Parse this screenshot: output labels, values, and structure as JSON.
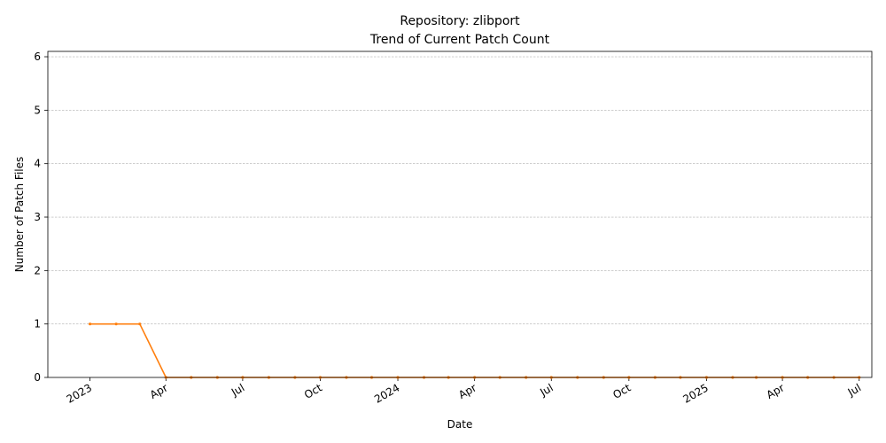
{
  "chart_data": {
    "type": "line",
    "title": "Repository: zlibport",
    "subtitle": "Trend of Current Patch Count",
    "xlabel": "Date",
    "ylabel": "Number of Patch Files",
    "ylim": [
      0,
      6.1
    ],
    "y_ticks": [
      "0",
      "1",
      "2",
      "3",
      "4",
      "5",
      "6"
    ],
    "xlim": [
      "2022-11-12",
      "2025-07-16"
    ],
    "x_ticks": [
      {
        "date": "2023-01-01",
        "label": "2023"
      },
      {
        "date": "2023-04-01",
        "label": "Apr"
      },
      {
        "date": "2023-07-01",
        "label": "Jul"
      },
      {
        "date": "2023-10-01",
        "label": "Oct"
      },
      {
        "date": "2024-01-01",
        "label": "2024"
      },
      {
        "date": "2024-04-01",
        "label": "Apr"
      },
      {
        "date": "2024-07-01",
        "label": "Jul"
      },
      {
        "date": "2024-10-01",
        "label": "Oct"
      },
      {
        "date": "2025-01-01",
        "label": "2025"
      },
      {
        "date": "2025-04-01",
        "label": "Apr"
      },
      {
        "date": "2025-07-01",
        "label": "Jul"
      }
    ],
    "grid": "y-dashed",
    "series": [
      {
        "color": "#ff7f0e",
        "points": [
          {
            "x": "2023-01-01",
            "y": 1
          },
          {
            "x": "2023-02-01",
            "y": 1
          },
          {
            "x": "2023-03-01",
            "y": 1
          },
          {
            "x": "2023-04-01",
            "y": 0
          },
          {
            "x": "2023-05-01",
            "y": 0
          },
          {
            "x": "2023-06-01",
            "y": 0
          },
          {
            "x": "2023-07-01",
            "y": 0
          },
          {
            "x": "2023-08-01",
            "y": 0
          },
          {
            "x": "2023-09-01",
            "y": 0
          },
          {
            "x": "2023-10-01",
            "y": 0
          },
          {
            "x": "2023-11-01",
            "y": 0
          },
          {
            "x": "2023-12-01",
            "y": 0
          },
          {
            "x": "2024-01-01",
            "y": 0
          },
          {
            "x": "2024-02-01",
            "y": 0
          },
          {
            "x": "2024-03-01",
            "y": 0
          },
          {
            "x": "2024-04-01",
            "y": 0
          },
          {
            "x": "2024-05-01",
            "y": 0
          },
          {
            "x": "2024-06-01",
            "y": 0
          },
          {
            "x": "2024-07-01",
            "y": 0
          },
          {
            "x": "2024-08-01",
            "y": 0
          },
          {
            "x": "2024-09-01",
            "y": 0
          },
          {
            "x": "2024-10-01",
            "y": 0
          },
          {
            "x": "2024-11-01",
            "y": 0
          },
          {
            "x": "2024-12-01",
            "y": 0
          },
          {
            "x": "2025-01-01",
            "y": 0
          },
          {
            "x": "2025-02-01",
            "y": 0
          },
          {
            "x": "2025-03-01",
            "y": 0
          },
          {
            "x": "2025-04-01",
            "y": 0
          },
          {
            "x": "2025-05-01",
            "y": 0
          },
          {
            "x": "2025-06-01",
            "y": 0
          },
          {
            "x": "2025-07-01",
            "y": 0
          }
        ]
      }
    ]
  }
}
